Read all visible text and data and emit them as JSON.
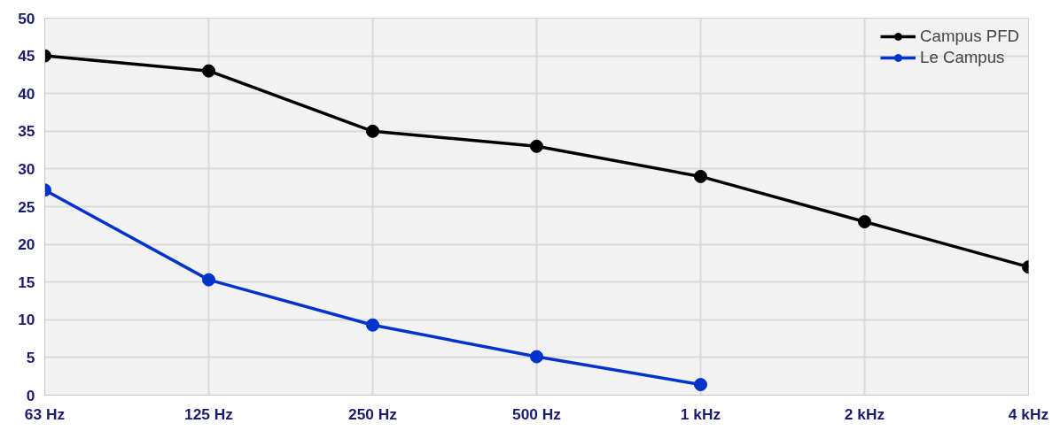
{
  "chart_data": {
    "type": "line",
    "categories": [
      "63 Hz",
      "125 Hz",
      "250 Hz",
      "500 Hz",
      "1 kHz",
      "2 kHz",
      "4 kHz"
    ],
    "ylim": [
      0,
      50
    ],
    "yticks": [
      0,
      5,
      10,
      15,
      20,
      25,
      30,
      35,
      40,
      45,
      50
    ],
    "grid": true,
    "legend": "top right",
    "marker": "circle",
    "line_style": "solid",
    "series": [
      {
        "name": "Campus PFD",
        "color": "#000000",
        "values": [
          45,
          43,
          35,
          33,
          29,
          23,
          17
        ]
      },
      {
        "name": "Le Campus",
        "color": "#0033cc",
        "values": [
          27.2,
          15.3,
          9.3,
          5.1,
          1.4,
          null,
          null
        ]
      }
    ]
  }
}
